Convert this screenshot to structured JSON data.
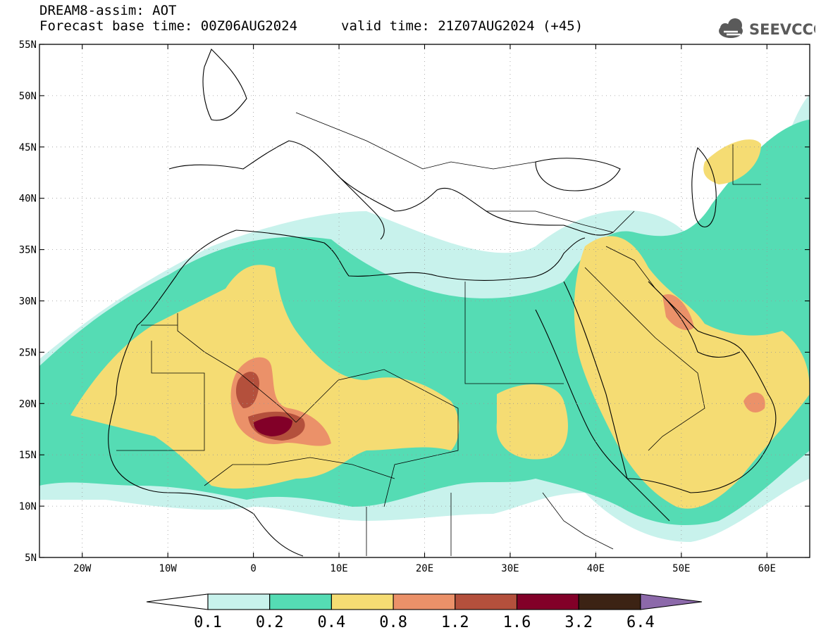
{
  "header": {
    "line1": "DREAM8-assim: AOT",
    "base_time": "Forecast base time: 00Z06AUG2024",
    "valid_time": "valid time: 21Z07AUG2024 (+45)"
  },
  "logo": {
    "text": "SEEVCCC",
    "icon": "cloud-icon",
    "color": "#5a5a5a"
  },
  "map": {
    "lon_range": [
      -25,
      65
    ],
    "lat_range": [
      5,
      55
    ],
    "lat_labels": [
      "5N",
      "10N",
      "15N",
      "20N",
      "25N",
      "30N",
      "35N",
      "40N",
      "45N",
      "50N",
      "55N"
    ],
    "lon_labels": [
      "20W",
      "10W",
      "0",
      "10E",
      "20E",
      "30E",
      "40E",
      "50E",
      "60E"
    ]
  },
  "colorbar": {
    "levels": [
      "0.1",
      "0.2",
      "0.4",
      "0.8",
      "1.2",
      "1.6",
      "3.2",
      "6.4"
    ],
    "colors": [
      "#ffffff",
      "#c8f2ec",
      "#55dcb4",
      "#f5dc73",
      "#eb9169",
      "#b4503c",
      "#820028",
      "#3c2314",
      "#8c69aa"
    ]
  }
}
